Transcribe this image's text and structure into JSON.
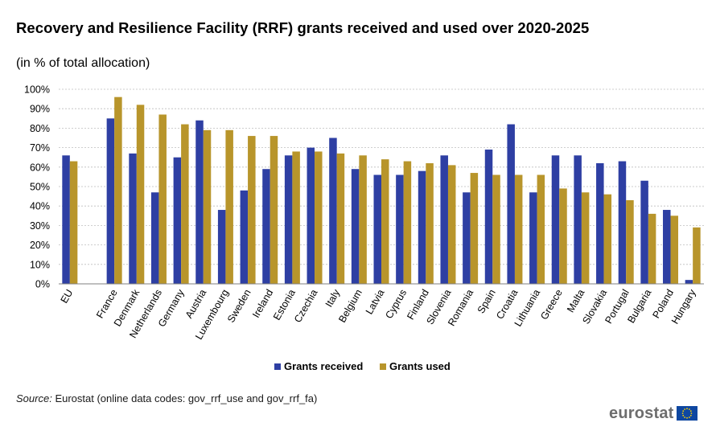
{
  "title": "Recovery and Resilience Facility (RRF) grants received and used over 2020-2025",
  "subtitle": "(in % of total allocation)",
  "source_label": "Source:",
  "source_text": "Eurostat (online data codes: gov_rrf_use and gov_rrf_fa)",
  "logo_text": "eurostat",
  "logo_flag_icon": "eu-flag-icon",
  "colors": {
    "grants_received": "#2e3fa3",
    "grants_used": "#b8952b",
    "grid": "#bdbdbd",
    "axis": "#7f7f7f"
  },
  "chart_data": {
    "type": "bar",
    "categories": [
      "EU",
      "",
      "France",
      "Denmark",
      "Netherlands",
      "Germany",
      "Austria",
      "Luxembourg",
      "Sweden",
      "Ireland",
      "Estonia",
      "Czechia",
      "Italy",
      "Belgium",
      "Latvia",
      "Cyprus",
      "Finland",
      "Slovenia",
      "Romania",
      "Spain",
      "Croatia",
      "Lithuania",
      "Greece",
      "Malta",
      "Slovakia",
      "Portugal",
      "Bulgaria",
      "Poland",
      "Hungary"
    ],
    "series": [
      {
        "name": "Grants received",
        "values": [
          66,
          null,
          85,
          67,
          47,
          65,
          84,
          38,
          48,
          59,
          66,
          70,
          75,
          59,
          56,
          56,
          58,
          66,
          47,
          69,
          82,
          47,
          66,
          66,
          62,
          63,
          53,
          38,
          2
        ]
      },
      {
        "name": "Grants used",
        "values": [
          63,
          null,
          96,
          92,
          87,
          82,
          79,
          79,
          76,
          76,
          68,
          68,
          67,
          66,
          64,
          63,
          62,
          61,
          57,
          56,
          56,
          56,
          49,
          47,
          46,
          43,
          36,
          35,
          29
        ]
      }
    ],
    "yticks": [
      "0%",
      "10%",
      "20%",
      "30%",
      "40%",
      "50%",
      "60%",
      "70%",
      "80%",
      "90%",
      "100%"
    ],
    "ylim": [
      0,
      100
    ],
    "grid": true,
    "legend_position": "bottom"
  }
}
